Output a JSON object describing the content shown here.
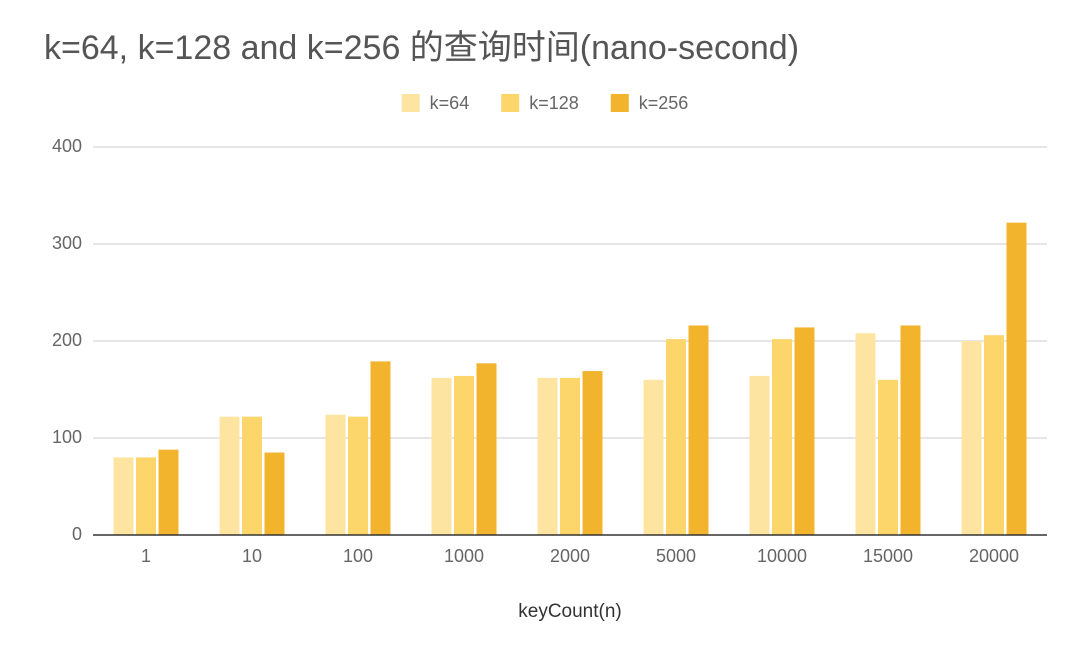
{
  "chart_data": {
    "type": "bar",
    "title": "k=64, k=128 and k=256 的查询时间(nano-second)",
    "x_label": "keyCount(n)",
    "categories": [
      "1",
      "10",
      "100",
      "1000",
      "2000",
      "5000",
      "10000",
      "15000",
      "20000"
    ],
    "series": [
      {
        "name": "k=64",
        "color": "#fde4a0",
        "values": [
          80,
          122,
          124,
          162,
          162,
          160,
          164,
          208,
          200
        ]
      },
      {
        "name": "k=128",
        "color": "#fcd66b",
        "values": [
          80,
          122,
          122,
          164,
          162,
          202,
          202,
          160,
          206
        ]
      },
      {
        "name": "k=256",
        "color": "#f2b42c",
        "values": [
          88,
          85,
          179,
          177,
          169,
          216,
          214,
          216,
          322
        ]
      }
    ],
    "ylim": [
      0,
      400
    ],
    "yticks": [
      0,
      100,
      200,
      300,
      400
    ],
    "grid": true,
    "legend": "top"
  }
}
